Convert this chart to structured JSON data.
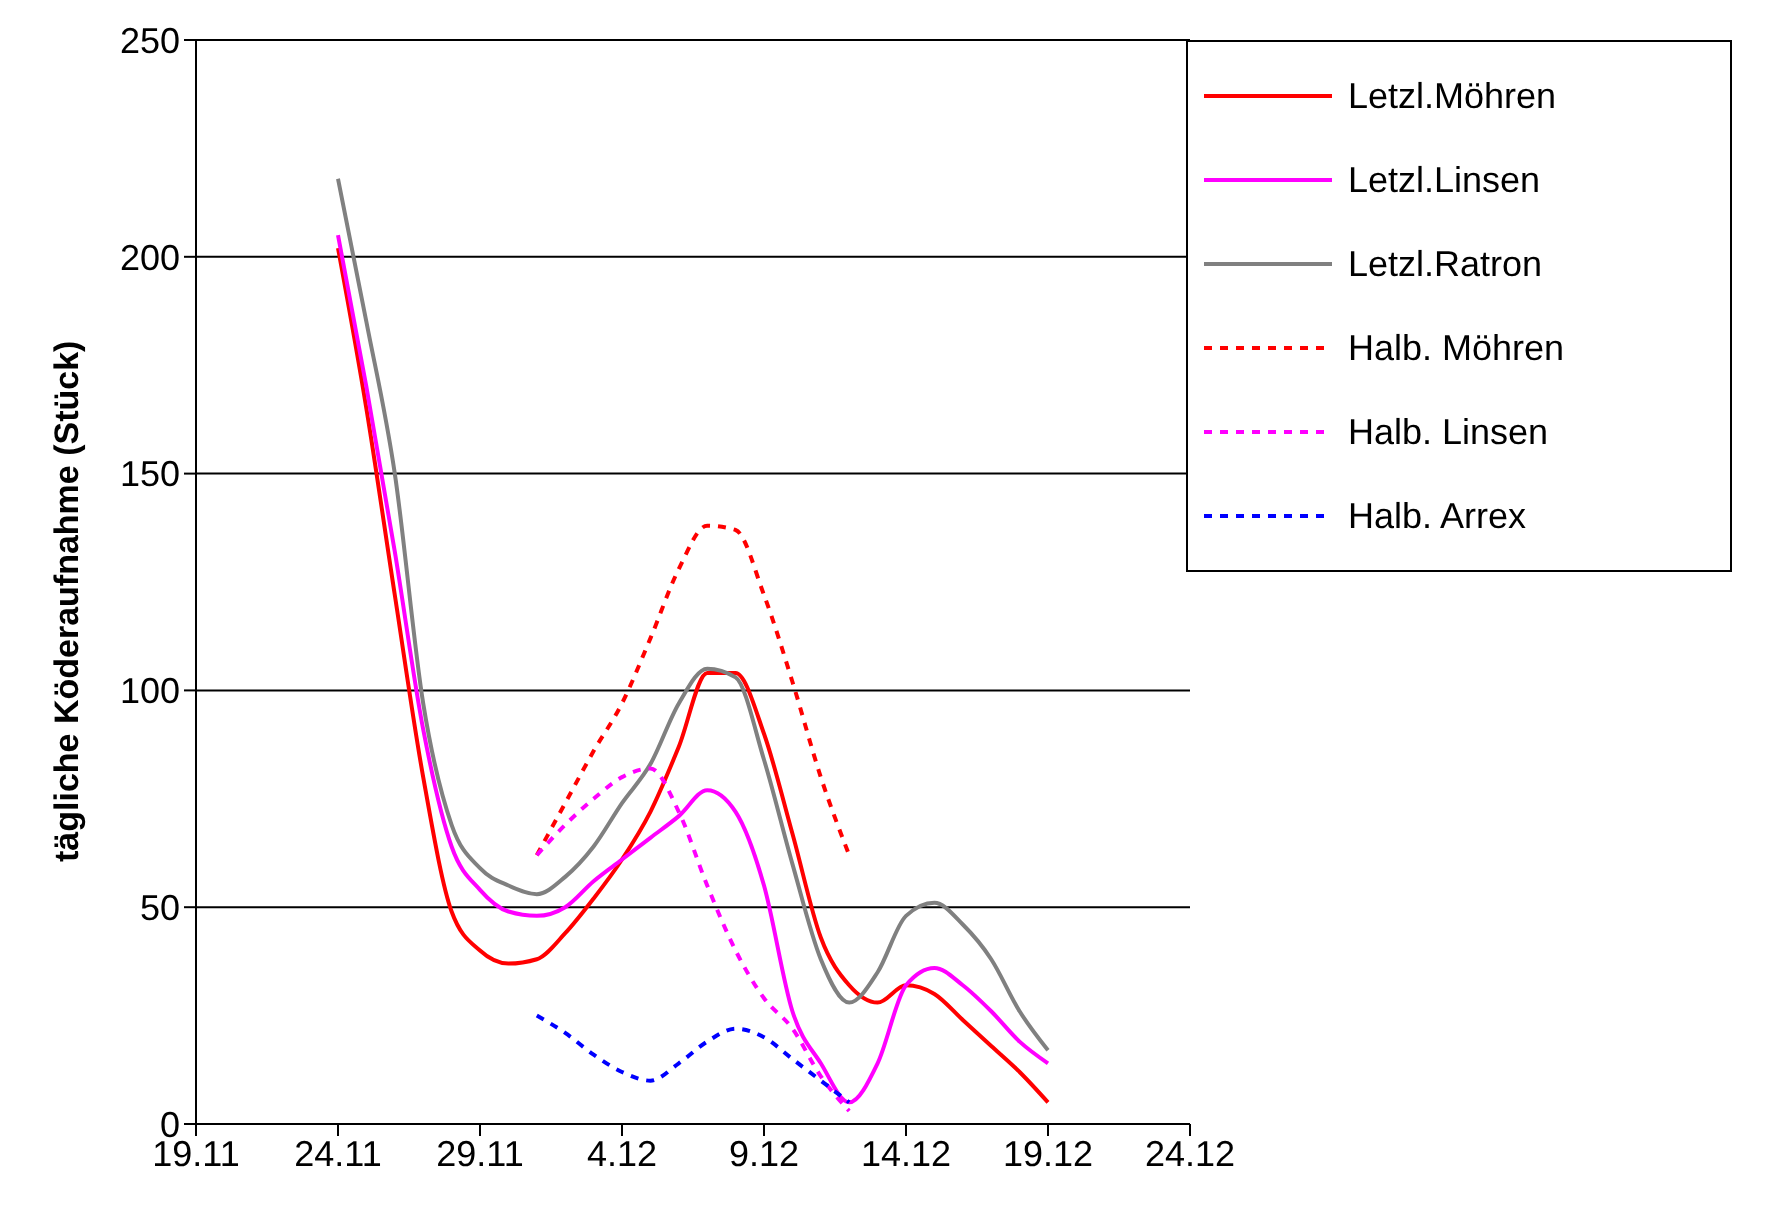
{
  "chart_data": {
    "type": "line",
    "ylabel": "tägliche Köderaufnahme (Stück)",
    "x": [
      "--11-24",
      "--11-25",
      "--11-26",
      "--11-27",
      "--11-28",
      "--11-29",
      "--11-30",
      "--12-01",
      "--12-02",
      "--12-03",
      "--12-04",
      "--12-05",
      "--12-06",
      "--12-07",
      "--12-08",
      "--12-09",
      "--12-10",
      "--12-11",
      "--12-12",
      "--12-13",
      "--12-14",
      "--12-15",
      "--12-16",
      "--12-17",
      "--12-18",
      "--12-19"
    ],
    "series": [
      {
        "name": "Letzl.Möhren",
        "color": "#ff0000",
        "line_style": "solid",
        "values": [
          202,
          165,
          122,
          80,
          49,
          40,
          37,
          38,
          44,
          52,
          61,
          72,
          87,
          104,
          104,
          90,
          67,
          43,
          32,
          28,
          32,
          30,
          24,
          18,
          12,
          5
        ]
      },
      {
        "name": "Letzl.Linsen",
        "color": "#ff00ff",
        "line_style": "solid",
        "values": [
          205,
          170,
          132,
          91,
          64,
          54,
          49,
          48,
          50,
          56,
          61,
          66,
          71,
          77,
          72,
          55,
          26,
          14,
          5,
          14,
          32,
          36,
          32,
          26,
          19,
          14
        ]
      },
      {
        "name": "Letzl.Ratron",
        "color": "#808080",
        "line_style": "solid",
        "values": [
          218,
          185,
          150,
          97,
          69,
          59,
          55,
          53,
          57,
          64,
          74,
          83,
          97,
          105,
          103,
          84,
          60,
          38,
          28,
          35,
          48,
          51,
          46,
          38,
          26,
          17
        ]
      },
      {
        "name": "Halb. Möhren",
        "color": "#ff0000",
        "line_style": "dashed",
        "x": [
          "--12-01",
          "--12-02",
          "--12-03",
          "--12-04",
          "--12-05",
          "--12-06",
          "--12-07",
          "--12-08",
          "--12-09",
          "--12-10",
          "--12-11",
          "--12-12"
        ],
        "values": [
          62,
          74,
          86,
          97,
          112,
          128,
          138,
          137,
          122,
          102,
          80,
          62
        ]
      },
      {
        "name": "Halb. Linsen",
        "color": "#ff00ff",
        "line_style": "dashed",
        "x": [
          "--12-01",
          "--12-02",
          "--12-03",
          "--12-04",
          "--12-05",
          "--12-06",
          "--12-07",
          "--12-08",
          "--12-09",
          "--12-10",
          "--12-11",
          "--12-12"
        ],
        "values": [
          62,
          69,
          75,
          80,
          82,
          72,
          55,
          40,
          29,
          22,
          11,
          3
        ]
      },
      {
        "name": "Halb. Arrex",
        "color": "#0000ff",
        "line_style": "dashed",
        "x": [
          "--12-01",
          "--12-02",
          "--12-03",
          "--12-04",
          "--12-05",
          "--12-06",
          "--12-07",
          "--12-08",
          "--12-09",
          "--12-10",
          "--12-11",
          "--12-12"
        ],
        "values": [
          25,
          21,
          16,
          12,
          10,
          14,
          19,
          22,
          20,
          15,
          10,
          5
        ]
      }
    ],
    "xlim": [
      "--11-19",
      "--12-24"
    ],
    "xticks": [
      {
        "value": "--11-19",
        "label": "19.11"
      },
      {
        "value": "--11-24",
        "label": "24.11"
      },
      {
        "value": "--11-29",
        "label": "29.11"
      },
      {
        "value": "--12-04",
        "label": "4.12"
      },
      {
        "value": "--12-09",
        "label": "9.12"
      },
      {
        "value": "--12-14",
        "label": "14.12"
      },
      {
        "value": "--12-19",
        "label": "19.12"
      },
      {
        "value": "--12-24",
        "label": "24.12"
      }
    ],
    "ylim": [
      0,
      250
    ],
    "yticks": [
      0,
      50,
      100,
      150,
      200,
      250
    ],
    "grid": "y",
    "legend": "top right",
    "marker": "none"
  }
}
